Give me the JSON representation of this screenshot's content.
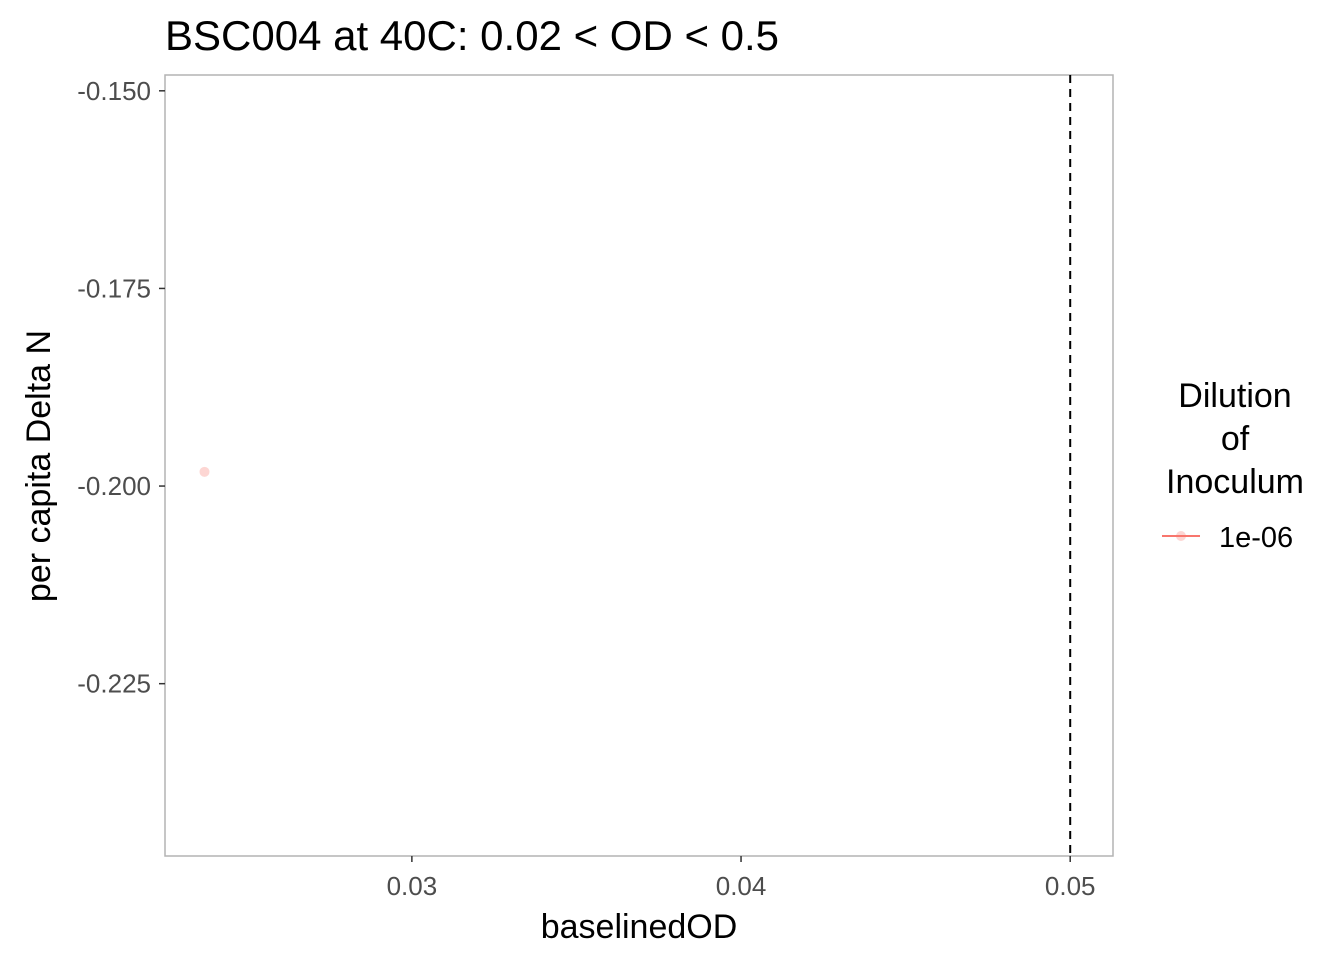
{
  "chart_data": {
    "type": "scatter",
    "title": "BSC004 at 40C: 0.02 < OD < 0.5",
    "xlabel": "baselinedOD",
    "ylabel": "per capita Delta N",
    "xlim": [
      0.0225,
      0.0513
    ],
    "ylim": [
      -0.2468,
      -0.148
    ],
    "x_ticks": [
      {
        "value": 0.03,
        "label": "0.03"
      },
      {
        "value": 0.04,
        "label": "0.04"
      },
      {
        "value": 0.05,
        "label": "0.05"
      }
    ],
    "y_ticks": [
      {
        "value": -0.15,
        "label": "-0.150"
      },
      {
        "value": -0.175,
        "label": "-0.175"
      },
      {
        "value": -0.2,
        "label": "-0.200"
      },
      {
        "value": -0.225,
        "label": "-0.225"
      }
    ],
    "series": [
      {
        "name": "1e-06",
        "color": "#f8766d",
        "points": [
          {
            "x": 0.0237,
            "y": -0.1982
          }
        ]
      }
    ],
    "reference_lines": [
      {
        "orientation": "vertical",
        "x": 0.05,
        "style": "dashed",
        "color": "#000000"
      }
    ],
    "legend": {
      "title_lines": [
        "Dilution",
        "of",
        "Inoculum"
      ],
      "placement": "right"
    },
    "grid": false
  }
}
